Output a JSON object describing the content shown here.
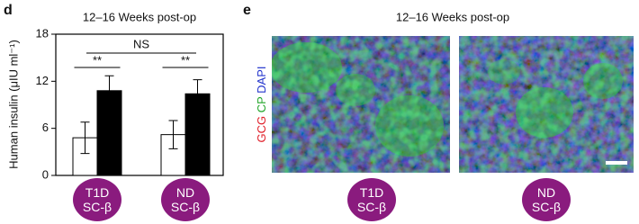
{
  "panel_d_label": "d",
  "chart_data": {
    "type": "bar",
    "title": "12–16 Weeks post-op",
    "y_label": "Human insulin (μIU ml⁻¹)",
    "categories": [
      "T1D SC-β",
      "ND SC-β"
    ],
    "series": [
      {
        "color": "#ffffff",
        "values": [
          4.8,
          5.2
        ],
        "errors": [
          2.0,
          1.8
        ]
      },
      {
        "color": "#000000",
        "values": [
          10.8,
          10.4
        ],
        "errors": [
          1.9,
          1.8
        ]
      }
    ],
    "ylim": [
      0,
      18
    ],
    "yticks": [
      0,
      6,
      12,
      18
    ],
    "annotations": [
      "**",
      "**",
      "NS"
    ]
  },
  "panel_e": {
    "label": "e",
    "title": "12–16 Weeks post-op",
    "stains": [
      "GCG",
      "CP",
      "DAPI"
    ],
    "images": [
      "T1D SC-β",
      "ND SC-β"
    ]
  }
}
